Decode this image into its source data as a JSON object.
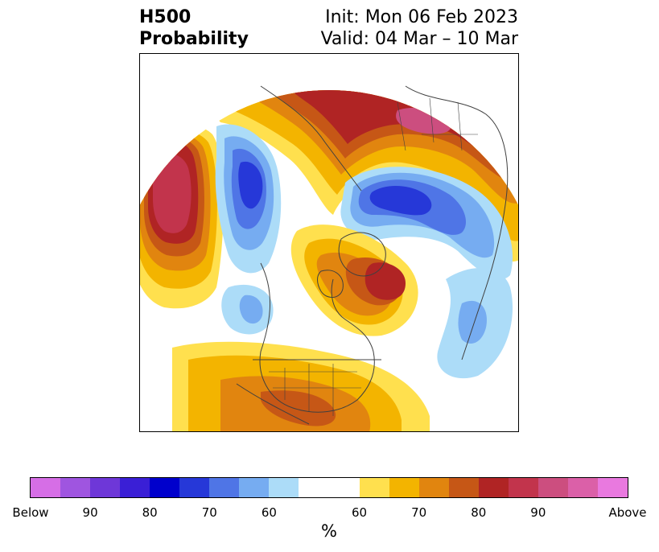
{
  "title": {
    "left_line1": "H500",
    "left_line2": "Probability",
    "right_line1": "Init: Mon 06 Feb 2023",
    "right_line2": "Valid: 04 Mar – 10 Mar"
  },
  "colorbar": {
    "unit": "%",
    "colors": [
      "#d66ee6",
      "#9f55e0",
      "#6e37d8",
      "#3a1fd6",
      "#0000cc",
      "#2638d8",
      "#4f75e6",
      "#76acf1",
      "#acdcf8",
      "#ffffff",
      "#ffe04e",
      "#f3b400",
      "#e1850f",
      "#c65716",
      "#b02424",
      "#c2344c",
      "#cc4e7f",
      "#db60a8",
      "#e979df"
    ],
    "ticks": [
      "Below",
      "90",
      "80",
      "70",
      "60",
      "60",
      "70",
      "80",
      "90",
      "Above"
    ]
  },
  "map": {
    "projection": "north-polar-stereographic",
    "region_labels": [],
    "legend_meaning": "below-normal (blue/purple) vs above-normal (yellow/red) 500mb height probability"
  }
}
